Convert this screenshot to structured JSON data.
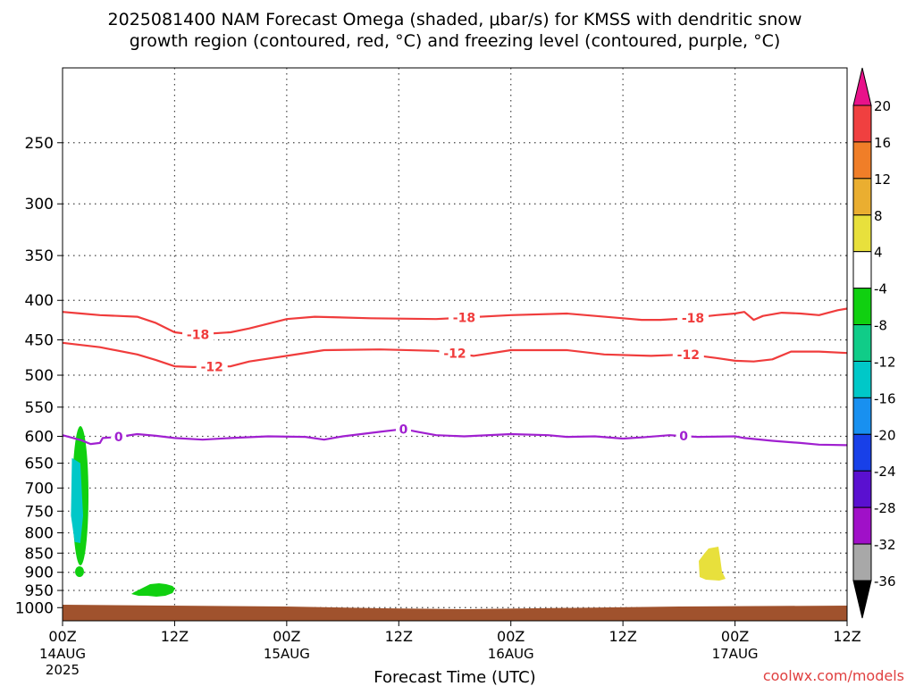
{
  "chart_data": {
    "type": "time-height cross section",
    "title_line1": "2025081400 NAM Forecast Omega (shaded, μbar/s) for KMSS with dendritic snow",
    "title_line2": "growth region (contoured, red, °C) and freezing level (contoured, purple, °C)",
    "xlabel": "Forecast Time (UTC)",
    "credit": "coolwx.com/models",
    "xlim_hours": [
      0,
      84
    ],
    "y_axis": "pressure (log scale)",
    "ylim_hpa": [
      200,
      1040
    ],
    "y_ticks": [
      250,
      300,
      350,
      400,
      450,
      500,
      550,
      600,
      650,
      700,
      750,
      800,
      850,
      900,
      950,
      1000
    ],
    "x_ticks": [
      {
        "hour": 0,
        "top": "00Z",
        "mid": "14AUG",
        "bottom": "2025"
      },
      {
        "hour": 12,
        "top": "12Z",
        "mid": "",
        "bottom": ""
      },
      {
        "hour": 24,
        "top": "00Z",
        "mid": "15AUG",
        "bottom": ""
      },
      {
        "hour": 36,
        "top": "12Z",
        "mid": "",
        "bottom": ""
      },
      {
        "hour": 48,
        "top": "00Z",
        "mid": "16AUG",
        "bottom": ""
      },
      {
        "hour": 60,
        "top": "12Z",
        "mid": "",
        "bottom": ""
      },
      {
        "hour": 72,
        "top": "00Z",
        "mid": "17AUG",
        "bottom": ""
      },
      {
        "hour": 84,
        "top": "12Z",
        "mid": "",
        "bottom": ""
      }
    ],
    "grid": true,
    "contours": [
      {
        "label": "-18",
        "color": "#f03c3c",
        "units": "°C",
        "label_hours": [
          14.5,
          43,
          67.5
        ],
        "points": [
          [
            0,
            414
          ],
          [
            2,
            416
          ],
          [
            4,
            418
          ],
          [
            8,
            420
          ],
          [
            10,
            428
          ],
          [
            12,
            440
          ],
          [
            14,
            443
          ],
          [
            18,
            440
          ],
          [
            20,
            435
          ],
          [
            24,
            423
          ],
          [
            27,
            420
          ],
          [
            33,
            422
          ],
          [
            40,
            423
          ],
          [
            48,
            418
          ],
          [
            54,
            416
          ],
          [
            60,
            422
          ],
          [
            62,
            424
          ],
          [
            64,
            424
          ],
          [
            67,
            422
          ],
          [
            70,
            418
          ],
          [
            72,
            416
          ],
          [
            73,
            414
          ],
          [
            74,
            424
          ],
          [
            75,
            419
          ],
          [
            77,
            415
          ],
          [
            79,
            416
          ],
          [
            81,
            418
          ],
          [
            83,
            412
          ],
          [
            84,
            410
          ]
        ]
      },
      {
        "label": "-12",
        "color": "#f03c3c",
        "units": "°C",
        "label_hours": [
          16,
          42,
          67
        ],
        "points": [
          [
            0,
            454
          ],
          [
            4,
            460
          ],
          [
            8,
            470
          ],
          [
            10,
            478
          ],
          [
            12,
            487
          ],
          [
            14,
            488
          ],
          [
            18,
            487
          ],
          [
            20,
            480
          ],
          [
            24,
            472
          ],
          [
            28,
            464
          ],
          [
            34,
            463
          ],
          [
            40,
            465
          ],
          [
            44,
            472
          ],
          [
            48,
            464
          ],
          [
            54,
            464
          ],
          [
            58,
            470
          ],
          [
            63,
            472
          ],
          [
            67,
            470
          ],
          [
            70,
            475
          ],
          [
            72,
            479
          ],
          [
            74,
            480
          ],
          [
            76,
            477
          ],
          [
            78,
            466
          ],
          [
            81,
            466
          ],
          [
            84,
            468
          ]
        ]
      },
      {
        "label": "0",
        "color": "#a020d0",
        "units": "°C",
        "label_hours": [
          6,
          36.5,
          66.5
        ],
        "points": [
          [
            0,
            598
          ],
          [
            2,
            607
          ],
          [
            3,
            614
          ],
          [
            4,
            612
          ],
          [
            4.3,
            603
          ],
          [
            6,
            601
          ],
          [
            8,
            596
          ],
          [
            10,
            599
          ],
          [
            12,
            603
          ],
          [
            15,
            606
          ],
          [
            18,
            603
          ],
          [
            22,
            600
          ],
          [
            26,
            601
          ],
          [
            28,
            606
          ],
          [
            30,
            600
          ],
          [
            34,
            592
          ],
          [
            36.5,
            587
          ],
          [
            38,
            592
          ],
          [
            40,
            598
          ],
          [
            43,
            600
          ],
          [
            48,
            596
          ],
          [
            52,
            598
          ],
          [
            54,
            601
          ],
          [
            57,
            600
          ],
          [
            60,
            604
          ],
          [
            62,
            602
          ],
          [
            65,
            598
          ],
          [
            66,
            599
          ],
          [
            68,
            601
          ],
          [
            72,
            600
          ],
          [
            73,
            603
          ],
          [
            76,
            608
          ],
          [
            79,
            612
          ],
          [
            81,
            615
          ],
          [
            84,
            616
          ]
        ]
      }
    ],
    "shaded_regions": [
      {
        "name": "omega-core-early",
        "color": "#00c8c8",
        "category": "-16 to -12",
        "points": [
          [
            1.0,
            640
          ],
          [
            1.9,
            650
          ],
          [
            2.2,
            760
          ],
          [
            1.9,
            825
          ],
          [
            1.3,
            822
          ],
          [
            0.9,
            760
          ]
        ]
      }
    ],
    "colorbar": {
      "units": "μbar/s",
      "bins": [
        {
          "from": 16,
          "to": 20,
          "color": "#f04040"
        },
        {
          "from": 12,
          "to": 16,
          "color": "#f07e28"
        },
        {
          "from": 8,
          "to": 12,
          "color": "#eaae30"
        },
        {
          "from": 4,
          "to": 8,
          "color": "#e8e03c"
        },
        {
          "from": -4,
          "to": 4,
          "color": "#ffffff"
        },
        {
          "from": -8,
          "to": -4,
          "color": "#10d010"
        },
        {
          "from": -12,
          "to": -8,
          "color": "#10cc88"
        },
        {
          "from": -16,
          "to": -12,
          "color": "#00c8c8"
        },
        {
          "from": -20,
          "to": -16,
          "color": "#1890f0"
        },
        {
          "from": -24,
          "to": -20,
          "color": "#1840e8"
        },
        {
          "from": -28,
          "to": -24,
          "color": "#5a10d0"
        },
        {
          "from": -32,
          "to": -28,
          "color": "#a010c8"
        },
        {
          "from": -36,
          "to": -32,
          "color": "#a8a8a8"
        }
      ],
      "top_arrow_color": "#e8128a",
      "bottom_arrow_color": "#000000",
      "tick_labels": [
        "20",
        "16",
        "12",
        "8",
        "4",
        "-4",
        "-8",
        "-12",
        "-16",
        "-20",
        "-24",
        "-28",
        "-32",
        "-36"
      ]
    },
    "terrain_color": "#a0522d"
  }
}
